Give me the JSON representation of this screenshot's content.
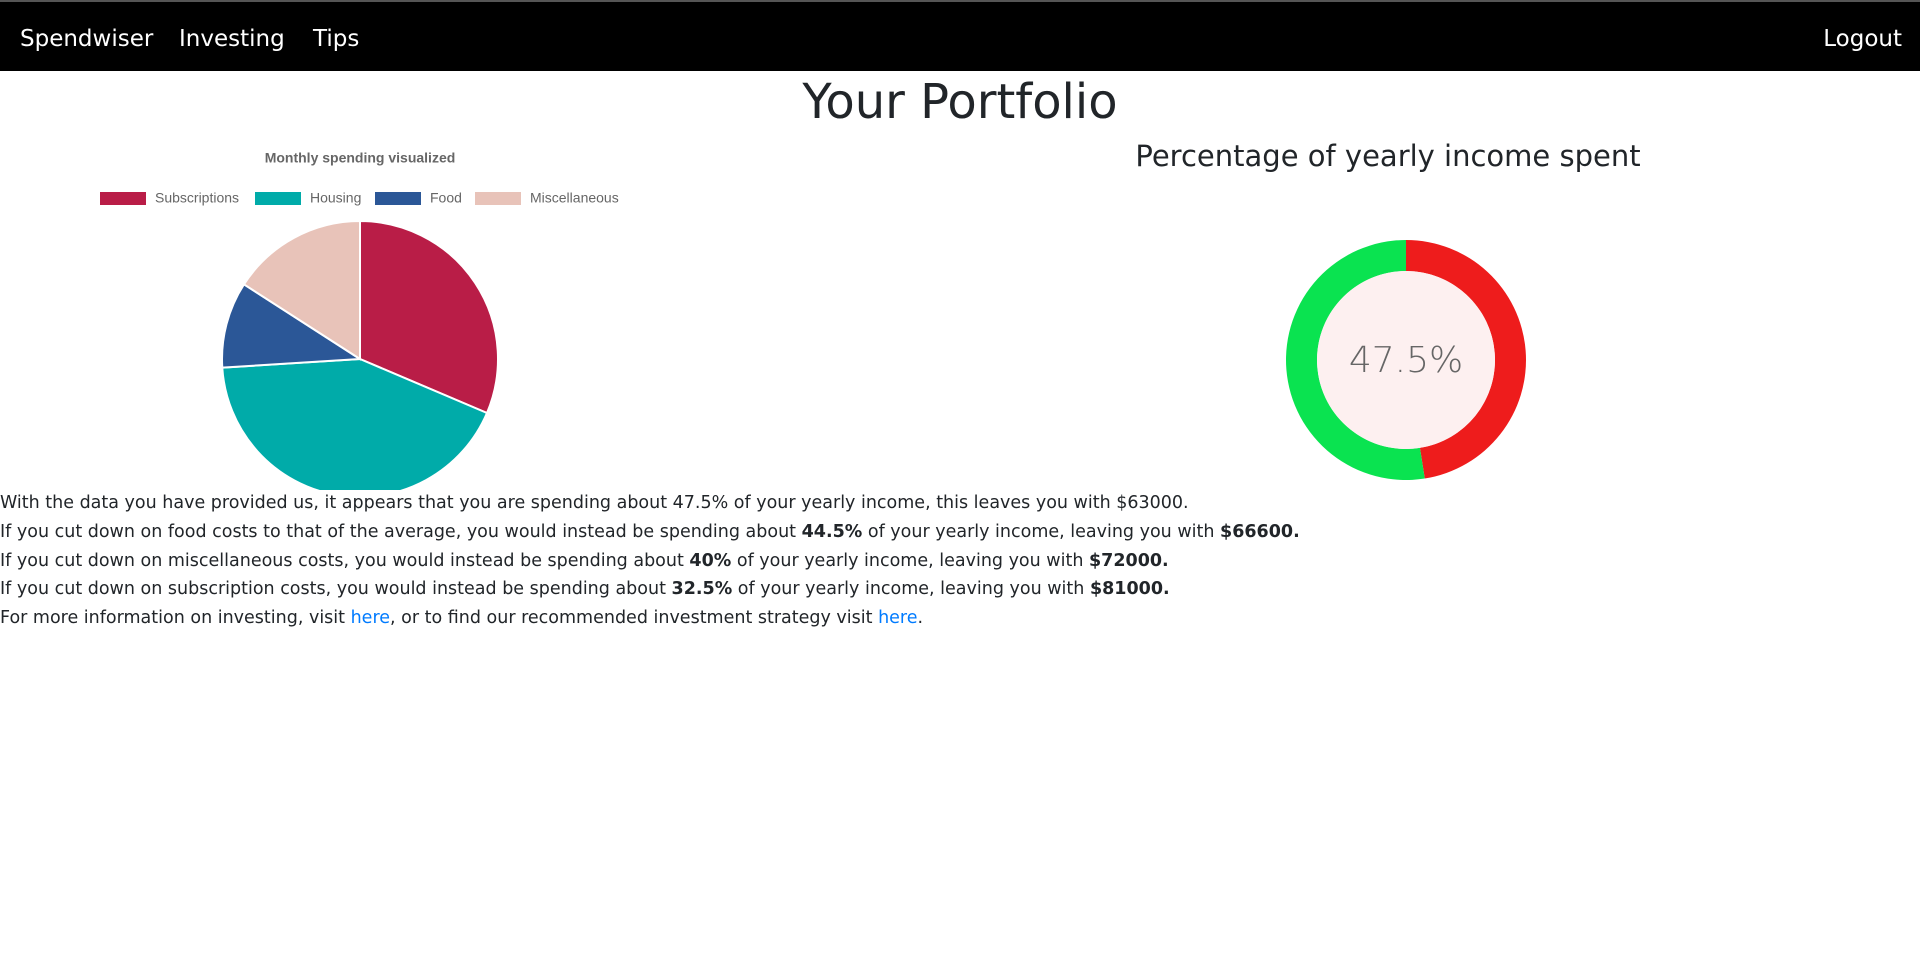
{
  "nav": {
    "brand": "Spendwiser",
    "links": [
      "Investing",
      "Tips"
    ],
    "logout": "Logout"
  },
  "header": {
    "title": "Your Portfolio"
  },
  "chart_data": [
    {
      "type": "pie",
      "title": "Monthly spending visualized",
      "categories": [
        "Subscriptions",
        "Housing",
        "Food",
        "Miscellaneous"
      ],
      "values": [
        31.4,
        42.6,
        10.1,
        15.9
      ],
      "colors": [
        "#b91d47",
        "#00aba9",
        "#2b5797",
        "#e8c3b9"
      ]
    },
    {
      "type": "doughnut",
      "title": "Percentage of yearly income spent",
      "values": [
        47.5,
        52.5
      ],
      "colors": [
        "#ee1c1c",
        "#0ae350"
      ],
      "center_label": "47.5%"
    }
  ],
  "paragraphs": [
    [
      "With the data you have provided us, it appears that you are spending about 47.5% of your yearly income, this leaves you with $63000."
    ],
    [
      "If you cut down on food costs to that of the average, you would instead be spending about ",
      "44.5%",
      " of your yearly income, leaving you with ",
      "$66600."
    ],
    [
      "If you cut down on miscellaneous costs, you would instead be spending about ",
      "40%",
      " of your yearly income, leaving you with ",
      "$72000."
    ],
    [
      "If you cut down on subscription costs, you would instead be spending about ",
      "32.5%",
      " of your yearly income, leaving you with ",
      "$81000."
    ],
    [
      "For more information on investing, visit ",
      "here",
      ", or to find our recommended investment strategy visit ",
      "here",
      "."
    ]
  ]
}
